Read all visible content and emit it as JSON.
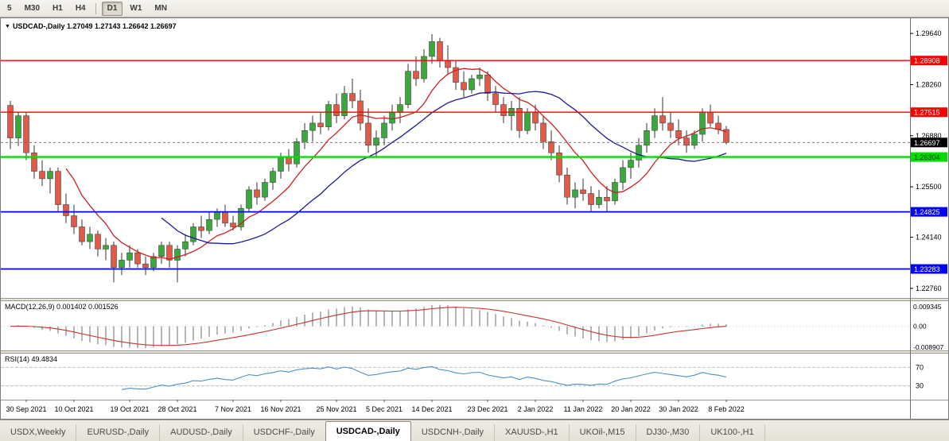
{
  "toolbar": {
    "buttons": [
      {
        "label": "5"
      },
      {
        "label": "M30"
      },
      {
        "label": "H1"
      },
      {
        "label": "H4"
      },
      {
        "label": "D1",
        "separator_before": true
      },
      {
        "label": "W1"
      },
      {
        "label": "MN"
      }
    ],
    "active": "D1"
  },
  "chart": {
    "symbol": "USDCAD-",
    "period": "Daily",
    "title_text": "USDCAD-,Daily 1.27049 1.27143 1.26642 1.26697",
    "open": "1.27049",
    "high": "1.27143",
    "low": "1.26642",
    "close": "1.26697"
  },
  "levels": [
    {
      "price": 1.28908,
      "text": "1.28908",
      "color": "#ff0000",
      "badge_text_color": "#ffffff",
      "line_width": 1.4
    },
    {
      "price": 1.27515,
      "text": "1.27515",
      "color": "#ff0000",
      "badge_text_color": "#ffffff",
      "line_width": 1.4
    },
    {
      "price": 1.26304,
      "text": "1.26304",
      "color": "#00dd00",
      "badge_text_color": "#003300",
      "line_width": 2.4
    },
    {
      "price": 1.24825,
      "text": "1.24825",
      "color": "#0000ff",
      "badge_text_color": "#ffffff",
      "line_width": 1.8
    },
    {
      "price": 1.23283,
      "text": "1.23283",
      "color": "#0000ff",
      "badge_text_color": "#ffffff",
      "line_width": 1.8
    }
  ],
  "current_price": {
    "price": 1.26697,
    "text": "1.26697",
    "badge_bg": "#000000",
    "badge_text_color": "#ffffff"
  },
  "chart_data": {
    "type": "candlestick",
    "symbol": "USDCAD",
    "timeframe": "Daily",
    "price_scale": {
      "top": 1.3005,
      "bottom": 1.225
    },
    "price_ticks": [
      "1.29640",
      "1.28260",
      "1.26880",
      "1.25500",
      "1.24140",
      "1.22760"
    ],
    "date_ticks": [
      {
        "i": 2,
        "label": "30 Sep 2021"
      },
      {
        "i": 8,
        "label": "10 Oct 2021"
      },
      {
        "i": 15,
        "label": "19 Oct 2021"
      },
      {
        "i": 21,
        "label": "28 Oct 2021"
      },
      {
        "i": 28,
        "label": "7 Nov 2021"
      },
      {
        "i": 34,
        "label": "16 Nov 2021"
      },
      {
        "i": 41,
        "label": "25 Nov 2021"
      },
      {
        "i": 47,
        "label": "5 Dec 2021"
      },
      {
        "i": 53,
        "label": "14 Dec 2021"
      },
      {
        "i": 60,
        "label": "23 Dec 2021"
      },
      {
        "i": 66,
        "label": "2 Jan 2022"
      },
      {
        "i": 72,
        "label": "11 Jan 2022"
      },
      {
        "i": 78,
        "label": "20 Jan 2022"
      },
      {
        "i": 84,
        "label": "30 Jan 2022"
      },
      {
        "i": 90,
        "label": "8 Feb 2022"
      }
    ],
    "candles": [
      [
        1.277,
        1.2782,
        1.2652,
        1.2682
      ],
      [
        1.2682,
        1.2752,
        1.266,
        1.2742
      ],
      [
        1.2742,
        1.2752,
        1.2622,
        1.2642
      ],
      [
        1.2642,
        1.2662,
        1.2572,
        1.2592
      ],
      [
        1.2592,
        1.2622,
        1.2552,
        1.2572
      ],
      [
        1.2572,
        1.2602,
        1.2532,
        1.2592
      ],
      [
        1.2592,
        1.2602,
        1.2482,
        1.2502
      ],
      [
        1.2502,
        1.2532,
        1.2452,
        1.2472
      ],
      [
        1.2472,
        1.2502,
        1.2422,
        1.2442
      ],
      [
        1.2442,
        1.2462,
        1.2392,
        1.2402
      ],
      [
        1.2402,
        1.2442,
        1.2382,
        1.2422
      ],
      [
        1.2422,
        1.2432,
        1.2362,
        1.2382
      ],
      [
        1.2382,
        1.2412,
        1.2352,
        1.2392
      ],
      [
        1.2392,
        1.2402,
        1.2292,
        1.2332
      ],
      [
        1.2332,
        1.2372,
        1.2312,
        1.2352
      ],
      [
        1.2352,
        1.2392,
        1.2332,
        1.2372
      ],
      [
        1.2372,
        1.2382,
        1.2332,
        1.2342
      ],
      [
        1.2342,
        1.2362,
        1.2312,
        1.2332
      ],
      [
        1.2332,
        1.2372,
        1.2322,
        1.2362
      ],
      [
        1.2362,
        1.2402,
        1.2342,
        1.2392
      ],
      [
        1.2392,
        1.2402,
        1.2332,
        1.2352
      ],
      [
        1.2352,
        1.2392,
        1.2292,
        1.2382
      ],
      [
        1.2382,
        1.2422,
        1.2362,
        1.2402
      ],
      [
        1.2402,
        1.2452,
        1.2392,
        1.2442
      ],
      [
        1.2442,
        1.2472,
        1.2412,
        1.2432
      ],
      [
        1.2432,
        1.2482,
        1.2422,
        1.2462
      ],
      [
        1.2462,
        1.2492,
        1.2442,
        1.2482
      ],
      [
        1.2482,
        1.2502,
        1.2442,
        1.2452
      ],
      [
        1.2452,
        1.2472,
        1.2432,
        1.2442
      ],
      [
        1.2442,
        1.2502,
        1.2432,
        1.2492
      ],
      [
        1.2492,
        1.2552,
        1.2482,
        1.2542
      ],
      [
        1.2542,
        1.2562,
        1.2502,
        1.2522
      ],
      [
        1.2522,
        1.2572,
        1.2512,
        1.2562
      ],
      [
        1.2562,
        1.2602,
        1.2542,
        1.2592
      ],
      [
        1.2592,
        1.2642,
        1.2572,
        1.2632
      ],
      [
        1.2632,
        1.2652,
        1.2592,
        1.2612
      ],
      [
        1.2612,
        1.2682,
        1.2602,
        1.2672
      ],
      [
        1.2672,
        1.2722,
        1.2652,
        1.2702
      ],
      [
        1.2702,
        1.2742,
        1.2672,
        1.2722
      ],
      [
        1.2722,
        1.2752,
        1.2692,
        1.2712
      ],
      [
        1.2712,
        1.2782,
        1.2702,
        1.2772
      ],
      [
        1.2772,
        1.2802,
        1.2722,
        1.2742
      ],
      [
        1.2742,
        1.2822,
        1.2732,
        1.2802
      ],
      [
        1.2802,
        1.2842,
        1.2762,
        1.2782
      ],
      [
        1.2782,
        1.2812,
        1.2702,
        1.2722
      ],
      [
        1.2722,
        1.2762,
        1.2642,
        1.2662
      ],
      [
        1.2662,
        1.2702,
        1.2632,
        1.2682
      ],
      [
        1.2682,
        1.2742,
        1.2662,
        1.2722
      ],
      [
        1.2722,
        1.2772,
        1.2702,
        1.2752
      ],
      [
        1.2752,
        1.2792,
        1.2722,
        1.2772
      ],
      [
        1.2772,
        1.2882,
        1.2762,
        1.2862
      ],
      [
        1.2862,
        1.2902,
        1.2822,
        1.2842
      ],
      [
        1.2842,
        1.2922,
        1.2832,
        1.2902
      ],
      [
        1.2902,
        1.2962,
        1.2882,
        1.2942
      ],
      [
        1.2942,
        1.2952,
        1.2872,
        1.2892
      ],
      [
        1.2892,
        1.2932,
        1.2852,
        1.2872
      ],
      [
        1.2872,
        1.2892,
        1.2812,
        1.2832
      ],
      [
        1.2832,
        1.2862,
        1.2792,
        1.2812
      ],
      [
        1.2812,
        1.2852,
        1.2802,
        1.2842
      ],
      [
        1.2842,
        1.2872,
        1.2822,
        1.2852
      ],
      [
        1.2852,
        1.2862,
        1.2782,
        1.2802
      ],
      [
        1.2802,
        1.2822,
        1.2752,
        1.2772
      ],
      [
        1.2772,
        1.2792,
        1.2722,
        1.2742
      ],
      [
        1.2742,
        1.2782,
        1.2702,
        1.2762
      ],
      [
        1.2762,
        1.2792,
        1.2682,
        1.2702
      ],
      [
        1.2702,
        1.2762,
        1.2692,
        1.2752
      ],
      [
        1.2752,
        1.2772,
        1.2702,
        1.2722
      ],
      [
        1.2722,
        1.2742,
        1.2652,
        1.2672
      ],
      [
        1.2672,
        1.2702,
        1.2622,
        1.2642
      ],
      [
        1.2642,
        1.2662,
        1.2562,
        1.2582
      ],
      [
        1.2582,
        1.2602,
        1.2502,
        1.2522
      ],
      [
        1.2522,
        1.2562,
        1.2492,
        1.2542
      ],
      [
        1.2542,
        1.2572,
        1.2512,
        1.2532
      ],
      [
        1.2532,
        1.2552,
        1.2482,
        1.2502
      ],
      [
        1.2502,
        1.2542,
        1.2492,
        1.2522
      ],
      [
        1.2522,
        1.2552,
        1.2482,
        1.2512
      ],
      [
        1.2512,
        1.2572,
        1.2502,
        1.2562
      ],
      [
        1.2562,
        1.2622,
        1.2542,
        1.2602
      ],
      [
        1.2602,
        1.2642,
        1.2572,
        1.2622
      ],
      [
        1.2622,
        1.2682,
        1.2602,
        1.2662
      ],
      [
        1.2662,
        1.2722,
        1.2642,
        1.2702
      ],
      [
        1.2702,
        1.2762,
        1.2682,
        1.2742
      ],
      [
        1.2742,
        1.2792,
        1.2702,
        1.2722
      ],
      [
        1.2722,
        1.2752,
        1.2682,
        1.2702
      ],
      [
        1.2702,
        1.2732,
        1.2662,
        1.2682
      ],
      [
        1.2682,
        1.2702,
        1.2642,
        1.2662
      ],
      [
        1.2662,
        1.2702,
        1.2652,
        1.2692
      ],
      [
        1.2692,
        1.2762,
        1.2672,
        1.2752
      ],
      [
        1.2752,
        1.2772,
        1.2712,
        1.2722
      ],
      [
        1.2722,
        1.2742,
        1.2692,
        1.2705
      ],
      [
        1.27049,
        1.27143,
        1.26642,
        1.26697
      ]
    ],
    "ma_fast": {
      "period": 8,
      "color": "#cc2020"
    },
    "ma_slow": {
      "period": 20,
      "color": "#1c1c96"
    },
    "macd": {
      "label_text": "MACD(12,26,9) 0.001402 0.001526",
      "params": [
        12,
        26,
        9
      ],
      "value": "0.001402",
      "signal": "0.001526",
      "axis_top": "0.009345",
      "axis_zero": "0.00",
      "axis_bottom": "-0.008907",
      "scale_max": 0.009345,
      "scale_min": -0.008907
    },
    "rsi": {
      "label_text": "RSI(14) 49.4834",
      "period": 14,
      "value": "49.4834",
      "levels": [
        "70",
        "30"
      ]
    }
  },
  "tabs": [
    {
      "label": "USDX,Weekly"
    },
    {
      "label": "EURUSD-,Daily"
    },
    {
      "label": "AUDUSD-,Daily"
    },
    {
      "label": "USDCHF-,Daily"
    },
    {
      "label": "USDCAD-,Daily",
      "active": true
    },
    {
      "label": "USDCNH-,Daily"
    },
    {
      "label": "XAUUSD-,H1"
    },
    {
      "label": "UKOil-,M15"
    },
    {
      "label": "DJ30-,M30"
    },
    {
      "label": "UK100-,H1"
    }
  ],
  "colors": {
    "bull": "#3aa83c",
    "bear": "#e05a48",
    "wick": "#333333",
    "grid": "#e4e4e4",
    "macd_bar": "#b6b6b6",
    "macd_signal": "#c83232",
    "rsi_line": "#4f8fc9"
  }
}
